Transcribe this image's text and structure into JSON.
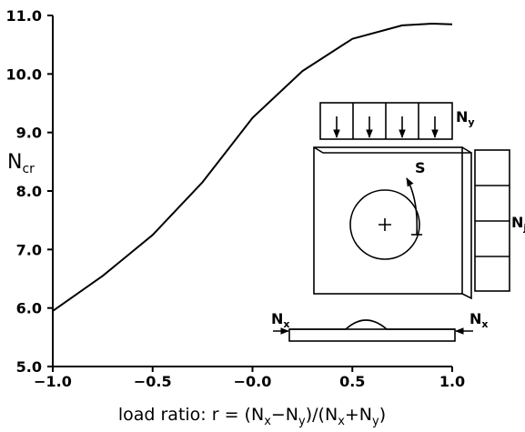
{
  "chart_data": {
    "type": "line",
    "y_label_parts": [
      "N",
      "cr"
    ],
    "x_label_parts": [
      "load ratio:  r  =  (N",
      "x",
      "−N",
      "y",
      ")/(N",
      "x",
      "+N",
      "y",
      ")"
    ],
    "x": [
      -1.0,
      -0.75,
      -0.5,
      -0.25,
      0.0,
      0.25,
      0.5,
      0.75,
      0.9,
      1.0
    ],
    "series": [
      {
        "color": "#000000",
        "values": [
          5.95,
          6.55,
          7.25,
          8.15,
          9.25,
          10.05,
          10.6,
          10.83,
          10.86,
          10.85
        ]
      }
    ],
    "xlim": [
      -1.0,
      1.0
    ],
    "xticks": [
      {
        "value": -1.0,
        "label": "−1.0"
      },
      {
        "value": -0.5,
        "label": "−0.5"
      },
      {
        "value": 0.0,
        "label": "−0.0"
      },
      0.5,
      {
        "value": 1.0,
        "label": "1.0"
      }
    ],
    "ylim": [
      5.0,
      11.0
    ],
    "yticks": [
      {
        "value": 5.0,
        "label": "5.0"
      },
      {
        "value": 6.0,
        "label": "6.0"
      },
      {
        "value": 7.0,
        "label": "7.0"
      },
      {
        "value": 8.0,
        "label": "8.0"
      },
      {
        "value": 9.0,
        "label": "9.0"
      },
      {
        "value": 10.0,
        "label": "10.0"
      },
      {
        "value": 11.0,
        "label": "11.0"
      }
    ],
    "grid": false,
    "inset_labels": {
      "top_load": [
        "N",
        "y"
      ],
      "side_load": [
        "N",
        "j"
      ],
      "shear": "S",
      "left_load": [
        "N",
        "x"
      ],
      "right_load": [
        "N",
        "x"
      ]
    }
  }
}
